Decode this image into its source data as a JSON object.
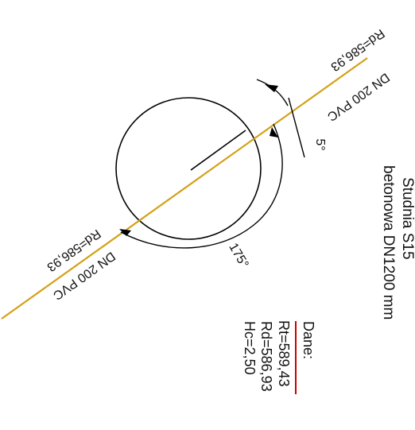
{
  "manhole": {
    "title_line1": "Studnia S15",
    "title_line2": "betonowa DN1200 mm"
  },
  "pipes": {
    "upper_label": "DN 200 PVC",
    "lower_label": "DN 200 PVC",
    "upper_elevation": "Rd=586,93",
    "lower_elevation": "Rd=586,93",
    "color": "#d4a017"
  },
  "angles": {
    "small": "5°",
    "large": "175°"
  },
  "data": {
    "header": "Dane:",
    "rt": "Rt=589,43",
    "rd": "Rd=586,93",
    "hc": "Hc=2,50",
    "underline_color": "#cc0000"
  }
}
